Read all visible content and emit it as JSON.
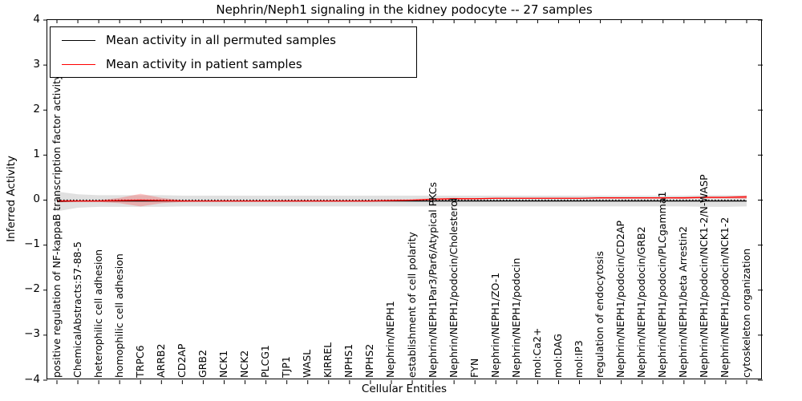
{
  "figure": {
    "title": "Nephrin/Neph1 signaling in the kidney podocyte -- 27 samples",
    "xlabel": "Cellular Entities",
    "ylabel": "Inferred Activity"
  },
  "legend": {
    "entries": [
      {
        "label": "Mean activity in all permuted samples",
        "color": "#000000"
      },
      {
        "label": "Mean activity in patient samples",
        "color": "#ff0000"
      }
    ],
    "position": "upper left"
  },
  "axes": {
    "y_tick_labels": [
      "4",
      "3",
      "2",
      "1",
      "0",
      "−1",
      "−2",
      "−3",
      "−4"
    ],
    "y_tick_values": [
      4,
      3,
      2,
      1,
      0,
      -1,
      -2,
      -3,
      -4
    ],
    "ylim": [
      -4,
      4
    ]
  },
  "chart_data": {
    "type": "line",
    "title": "Nephrin/Neph1 signaling in the kidney podocyte -- 27 samples",
    "xlabel": "Cellular Entities",
    "ylabel": "Inferred Activity",
    "ylim": [
      -4,
      4
    ],
    "grid": false,
    "legend_position": "upper left",
    "zero_line": {
      "style": "dotted",
      "color": "#000000",
      "y": 0
    },
    "categories": [
      "positive regulation of NF-kappaB transcription factor activity",
      "ChemicalAbstracts:57-88-5",
      "heterophilic cell adhesion",
      "homophilic cell adhesion",
      "TRPC6",
      "ARRB2",
      "CD2AP",
      "GRB2",
      "NCK1",
      "NCK2",
      "PLCG1",
      "TJP1",
      "WASL",
      "KIRREL",
      "NPHS1",
      "NPHS2",
      "Nephrin/NEPH1",
      "establishment of cell polarity",
      "Nephrin/NEPH1Par3/Par6/Atypical PKCs",
      "Nephrin/NEPH1/podocin/Cholesterol",
      "FYN",
      "Nephrin/NEPH1/ZO-1",
      "Nephrin/NEPH1/podocin",
      "mol:Ca2+",
      "mol:DAG",
      "mol:IP3",
      "regulation of endocytosis",
      "Nephrin/NEPH1/podocin/CD2AP",
      "Nephrin/NEPH1/podocin/GRB2",
      "Nephrin/NEPH1/podocin/PLCgamma1",
      "Nephrin/NEPH1/beta Arrestin2",
      "Nephrin/NEPH1/podocin/NCK1-2/N-WASP",
      "Nephrin/NEPH1/podocin/NCK1-2",
      "cytoskeleton organization"
    ],
    "series": [
      {
        "name": "Mean activity in all permuted samples",
        "color": "#000000",
        "values": [
          -0.03,
          -0.02,
          -0.02,
          -0.02,
          -0.02,
          -0.02,
          -0.02,
          -0.02,
          -0.02,
          -0.02,
          -0.02,
          -0.02,
          -0.02,
          -0.02,
          -0.02,
          -0.02,
          -0.02,
          -0.02,
          -0.02,
          -0.02,
          -0.02,
          -0.02,
          -0.02,
          -0.02,
          -0.02,
          -0.02,
          -0.02,
          -0.02,
          -0.02,
          -0.02,
          -0.02,
          -0.02,
          -0.02,
          -0.02
        ]
      },
      {
        "name": "Mean activity in patient samples",
        "color": "#ff0000",
        "values": [
          -0.02,
          -0.02,
          -0.02,
          -0.01,
          0.0,
          -0.01,
          -0.02,
          -0.02,
          -0.02,
          -0.02,
          -0.02,
          -0.02,
          -0.02,
          -0.02,
          -0.02,
          -0.02,
          -0.01,
          0.0,
          0.02,
          0.03,
          0.03,
          0.04,
          0.04,
          0.04,
          0.04,
          0.04,
          0.05,
          0.05,
          0.05,
          0.05,
          0.05,
          0.06,
          0.06,
          0.07
        ]
      }
    ],
    "bands": [
      {
        "name": "permuted-std-band",
        "color": "#000000",
        "opacity": 0.12,
        "center_series": 0,
        "half_widths": [
          0.22,
          0.15,
          0.13,
          0.13,
          0.13,
          0.13,
          0.12,
          0.12,
          0.12,
          0.12,
          0.12,
          0.12,
          0.12,
          0.12,
          0.12,
          0.12,
          0.12,
          0.12,
          0.12,
          0.12,
          0.12,
          0.12,
          0.12,
          0.12,
          0.12,
          0.12,
          0.12,
          0.12,
          0.12,
          0.12,
          0.12,
          0.13,
          0.13,
          0.12
        ]
      },
      {
        "name": "patient-std-band",
        "color": "#ff0000",
        "opacity": 0.22,
        "center_series": 1,
        "half_widths": [
          0.03,
          0.02,
          0.02,
          0.06,
          0.14,
          0.06,
          0.02,
          0.01,
          0.01,
          0.01,
          0.01,
          0.01,
          0.01,
          0.01,
          0.01,
          0.01,
          0.01,
          0.01,
          0.02,
          0.02,
          0.01,
          0.01,
          0.01,
          0.01,
          0.01,
          0.01,
          0.01,
          0.01,
          0.01,
          0.01,
          0.02,
          0.02,
          0.02,
          0.04
        ]
      }
    ]
  }
}
